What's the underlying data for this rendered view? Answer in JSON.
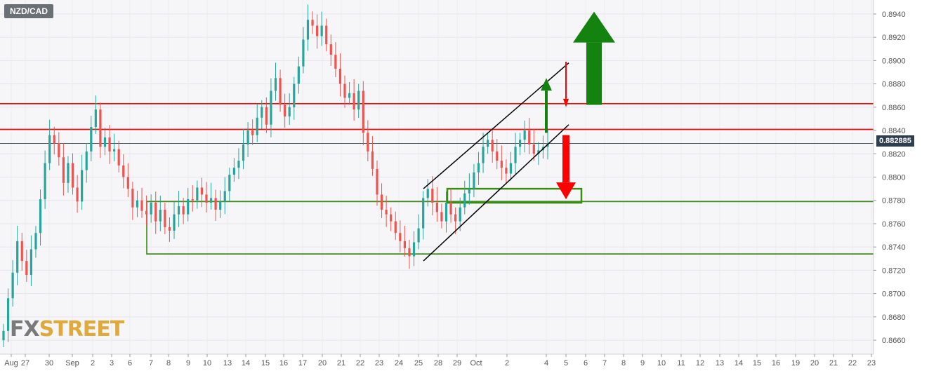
{
  "symbol": "NZD/CAD",
  "logo": {
    "part1": "FX",
    "part2": "STREET"
  },
  "current_price": "0.882885",
  "colors": {
    "bull": "#26a69a",
    "bear": "#ef5350",
    "resistance": "#ff0000",
    "support": "#3a8c12",
    "arrow_up": "#14820e",
    "arrow_down": "#ff0000",
    "channel": "#000000",
    "price_line": "#2c3e50"
  },
  "chart_data": {
    "type": "candlestick",
    "timeframe": "4h",
    "ylim": [
      0.8648,
      0.8952
    ],
    "y_ticks": [
      "0.8660",
      "0.8680",
      "0.8700",
      "0.8720",
      "0.8740",
      "0.8760",
      "0.8780",
      "0.8800",
      "0.8820",
      "0.8840",
      "0.8860",
      "0.8880",
      "0.8900",
      "0.8920",
      "0.8940"
    ],
    "x_ticks": [
      "Aug",
      "27",
      "30",
      "Sep",
      "2",
      "3",
      "6",
      "7",
      "8",
      "9",
      "10",
      "13",
      "14",
      "15",
      "16",
      "17",
      "20",
      "21",
      "22",
      "23",
      "24",
      "25",
      "28",
      "29",
      "Oct",
      "2",
      "4",
      "5",
      "6",
      "7",
      "8",
      "9",
      "10",
      "11",
      "12",
      "13",
      "14",
      "15",
      "16",
      "19",
      "20",
      "21",
      "22",
      "23"
    ],
    "closes": [
      0.8668,
      0.8696,
      0.8718,
      0.8745,
      0.8728,
      0.8716,
      0.8738,
      0.8752,
      0.8781,
      0.8812,
      0.8836,
      0.8829,
      0.8817,
      0.8795,
      0.8812,
      0.8791,
      0.8779,
      0.8806,
      0.8822,
      0.8843,
      0.8858,
      0.8826,
      0.8834,
      0.8822,
      0.8824,
      0.881,
      0.88,
      0.879,
      0.8774,
      0.878,
      0.8771,
      0.8768,
      0.8778,
      0.8762,
      0.8772,
      0.8757,
      0.8754,
      0.8768,
      0.8775,
      0.8768,
      0.8781,
      0.878,
      0.8791,
      0.8785,
      0.8778,
      0.8782,
      0.8772,
      0.8779,
      0.8788,
      0.8802,
      0.8808,
      0.8814,
      0.8828,
      0.884,
      0.8836,
      0.8851,
      0.886,
      0.8845,
      0.8874,
      0.8885,
      0.8862,
      0.8852,
      0.886,
      0.888,
      0.8895,
      0.8918,
      0.8935,
      0.893,
      0.8921,
      0.893,
      0.8914,
      0.8905,
      0.8893,
      0.888,
      0.8868,
      0.8872,
      0.8858,
      0.8874,
      0.8838,
      0.8822,
      0.8807,
      0.8785,
      0.8772,
      0.8768,
      0.8762,
      0.8752,
      0.8745,
      0.8739,
      0.8732,
      0.8744,
      0.8756,
      0.8782,
      0.879,
      0.8778,
      0.877,
      0.8762,
      0.8778,
      0.8768,
      0.8762,
      0.8774,
      0.8786,
      0.879,
      0.8804,
      0.8812,
      0.8826,
      0.8832,
      0.8822,
      0.8814,
      0.8808,
      0.8803,
      0.8812,
      0.8826,
      0.8832,
      0.884,
      0.8828,
      0.882,
      0.8823,
      0.8826,
      0.8829
    ],
    "levels": {
      "resistance": [
        0.8863,
        0.8841
      ],
      "support": [
        0.8779,
        0.8734
      ],
      "current": 0.882885
    },
    "channel": {
      "upper": [
        [
          "Sep 24",
          0.879
        ],
        [
          "Oct 5",
          0.8898
        ]
      ],
      "lower": [
        [
          "Sep 24",
          0.8728
        ],
        [
          "Oct 5",
          0.8845
        ]
      ]
    },
    "support_zones": [
      {
        "from": "Sep 6",
        "to": "Oct 5",
        "top": 0.8779,
        "bottom": 0.8734
      },
      {
        "from": "Sep 27",
        "to": "Oct 5",
        "top": 0.879,
        "bottom": 0.8778
      }
    ],
    "annotations": [
      {
        "type": "arrow-up",
        "at": "Oct 4",
        "from": 0.8838,
        "to": 0.8885,
        "size": "small"
      },
      {
        "type": "arrow-down",
        "at": "Oct 5",
        "from": 0.8899,
        "to": 0.886,
        "size": "small"
      },
      {
        "type": "arrow-down",
        "at": "Oct 5",
        "from": 0.8836,
        "to": 0.8781,
        "size": "large"
      },
      {
        "type": "arrow-up",
        "at": "Oct 6",
        "from": 0.8862,
        "to": 0.8942,
        "size": "large"
      }
    ]
  }
}
